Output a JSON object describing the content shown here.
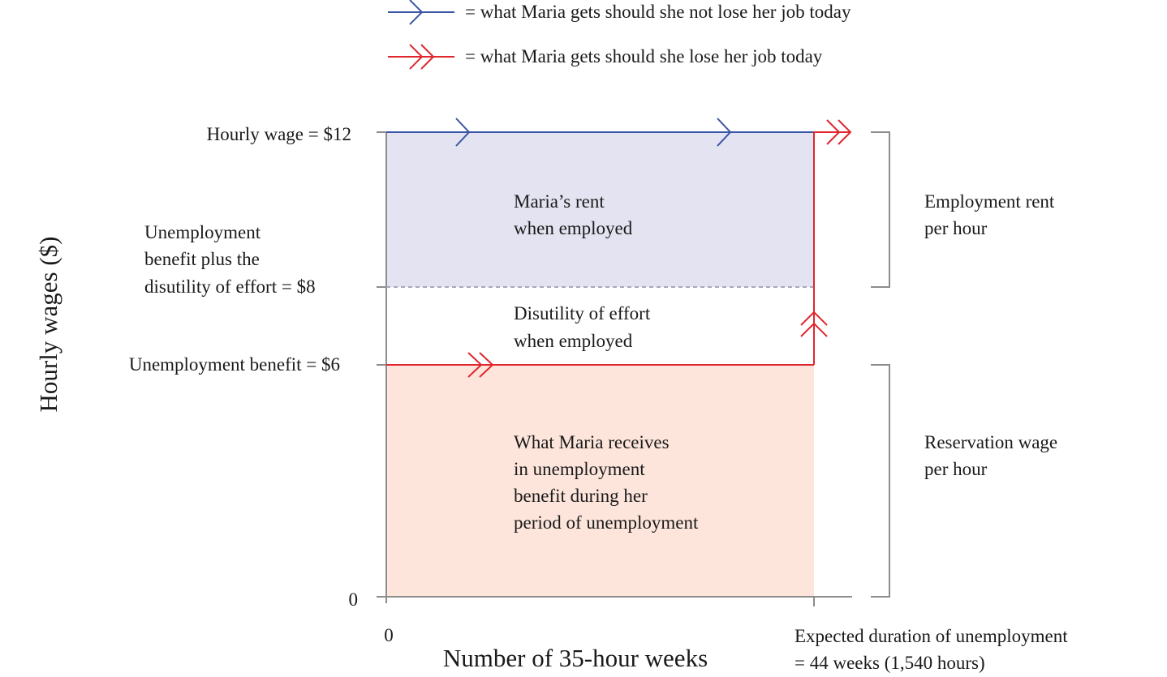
{
  "legend": {
    "blue_text": "= what Maria gets should she not lose her job today",
    "red_text": "= what Maria gets should she lose her job today"
  },
  "y_axis": {
    "title": "Hourly wages ($)",
    "ticks": {
      "wage": "Hourly wage = $12",
      "benefit_effort_line1": "Unemployment",
      "benefit_effort_line2": "benefit plus the",
      "benefit_effort_line3": "disutility of effort = $8",
      "benefit": "Unemployment benefit = $6",
      "zero": "0"
    }
  },
  "x_axis": {
    "title": "Number of 35-hour weeks",
    "zero": "0",
    "duration_line1": "Expected duration of unemployment",
    "duration_line2": "= 44 weeks (1,540 hours)"
  },
  "regions": {
    "rent_line1": "Maria’s rent",
    "rent_line2": "when employed",
    "effort_line1": "Disutility of effort",
    "effort_line2": "when employed",
    "benefit_line1": "What Maria receives",
    "benefit_line2": "in unemployment",
    "benefit_line3": "benefit during her",
    "benefit_line4": "period of unemployment"
  },
  "brackets": {
    "employment_rent_line1": "Employment rent",
    "employment_rent_line2": "per hour",
    "reservation_line1": "Reservation wage",
    "reservation_line2": "per hour"
  },
  "colors": {
    "blue": "#3a55a5",
    "red": "#e0262e",
    "rent_fill": "#e3e3f1",
    "benefit_fill": "#fde5dc",
    "axis": "#8c8c8c",
    "dashed": "#a6a6bf"
  }
}
